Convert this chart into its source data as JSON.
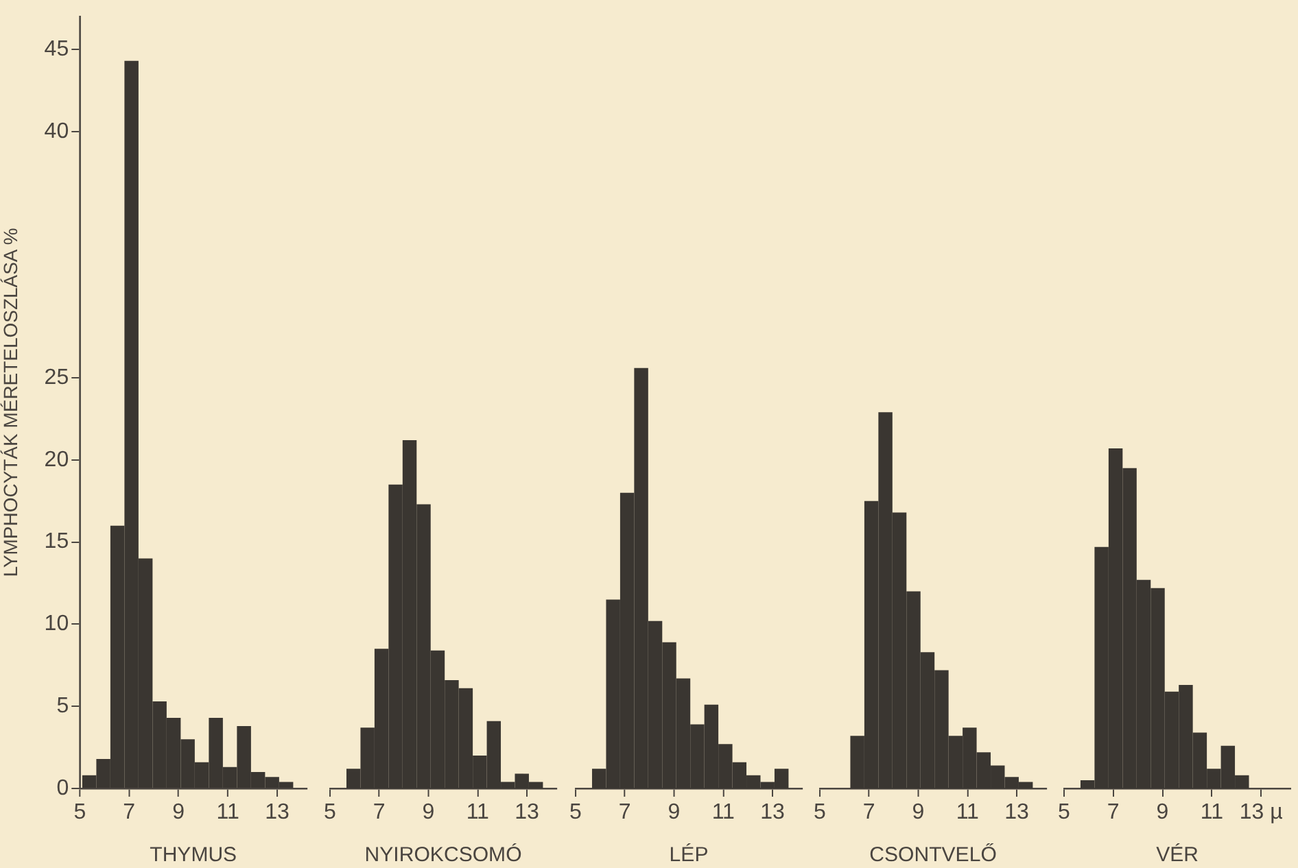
{
  "chart_data": [
    {
      "type": "histogram",
      "xlabel": "THYMUS",
      "ylabel": "LYMPHOCYTÁK MÉRETELOSZLÁSA %",
      "color": "#3a3631",
      "grid": false,
      "legend": false,
      "bins": [
        5.1,
        5.67,
        6.24,
        6.81,
        7.38,
        7.95,
        8.52,
        9.09,
        9.66,
        10.23,
        10.8,
        11.37,
        11.94,
        12.51,
        13.08,
        13.65
      ],
      "values": [
        0.8,
        1.8,
        16,
        44.3,
        14,
        5.3,
        4.3,
        3,
        1.6,
        4.3,
        1.3,
        3.8,
        1,
        0.7,
        0.4
      ],
      "xlim": [
        5,
        14.2
      ],
      "xticks": [
        5,
        7,
        9,
        11,
        13
      ],
      "ylim": [
        0,
        47
      ],
      "yticks": [
        0,
        5,
        10,
        15,
        20,
        25,
        40,
        45
      ]
    },
    {
      "type": "histogram",
      "xlabel": "NYIROKCSOMÓ",
      "color": "#3a3631",
      "grid": false,
      "legend": false,
      "tick_labels": "x",
      "bins": [
        5.67,
        6.24,
        6.81,
        7.38,
        7.95,
        8.52,
        9.09,
        9.66,
        10.23,
        10.8,
        11.37,
        11.94,
        12.51,
        13.08,
        13.65
      ],
      "values": [
        1.2,
        3.7,
        8.5,
        18.5,
        21.2,
        17.3,
        8.4,
        6.6,
        6.1,
        2,
        4.1,
        0.4,
        0.9,
        0.4
      ],
      "xlim": [
        5,
        14.2
      ],
      "xticks": [
        5,
        7,
        9,
        11,
        13
      ],
      "yticks": [
        0,
        5,
        10,
        15,
        20,
        25,
        40,
        45
      ]
    },
    {
      "type": "histogram",
      "xlabel": "LÉP",
      "color": "#3a3631",
      "grid": false,
      "legend": false,
      "tick_labels": "x",
      "bins": [
        5.67,
        6.24,
        6.81,
        7.38,
        7.95,
        8.52,
        9.09,
        9.66,
        10.23,
        10.8,
        11.37,
        11.94,
        12.51,
        13.08,
        13.65
      ],
      "values": [
        1.2,
        11.5,
        18,
        25.6,
        10.2,
        8.9,
        6.7,
        3.9,
        5.1,
        2.7,
        1.6,
        0.8,
        0.4,
        1.2
      ],
      "xlim": [
        5,
        14.2
      ],
      "xticks": [
        5,
        7,
        9,
        11,
        13
      ],
      "yticks": [
        0,
        5,
        10,
        15,
        20,
        25,
        40,
        45
      ]
    },
    {
      "type": "histogram",
      "xlabel": "CSONTVELŐ",
      "color": "#3a3631",
      "grid": false,
      "legend": false,
      "tick_labels": "x",
      "bins": [
        6.24,
        6.81,
        7.38,
        7.95,
        8.52,
        9.09,
        9.66,
        10.23,
        10.8,
        11.37,
        11.94,
        12.51,
        13.08,
        13.65
      ],
      "values": [
        3.2,
        17.5,
        22.9,
        16.8,
        12,
        8.3,
        7.2,
        3.2,
        3.7,
        2.2,
        1.4,
        0.7,
        0.4
      ],
      "xlim": [
        5,
        14.2
      ],
      "xticks": [
        5,
        7,
        9,
        11,
        13
      ],
      "yticks": [
        0,
        5,
        10,
        15,
        20,
        25,
        40,
        45
      ]
    },
    {
      "type": "histogram",
      "xlabel": "VÉR",
      "color": "#3a3631",
      "grid": false,
      "legend": false,
      "tick_labels": "x",
      "bins": [
        5.67,
        6.24,
        6.81,
        7.38,
        7.95,
        8.52,
        9.09,
        9.66,
        10.23,
        10.8,
        11.37,
        11.94,
        12.51
      ],
      "values": [
        0.5,
        14.7,
        20.7,
        19.5,
        12.7,
        12.2,
        5.9,
        6.3,
        3.4,
        1.2,
        2.6,
        0.8
      ],
      "xlim": [
        5,
        14.2
      ],
      "xticks": [
        5,
        7,
        9,
        {
          "value": 11,
          "label": "11"
        },
        {
          "value": 13,
          "label": "13 µ"
        }
      ],
      "yticks": [
        0,
        5,
        10,
        15,
        20,
        25,
        40,
        45
      ]
    }
  ]
}
